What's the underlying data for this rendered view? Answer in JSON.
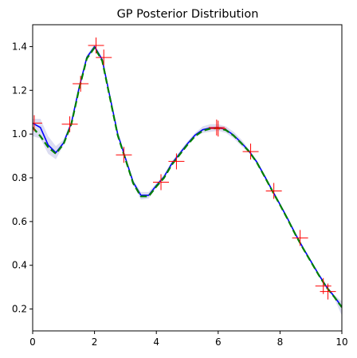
{
  "chart_data": {
    "type": "line",
    "title": "GP Posterior Distribution",
    "xlabel": "",
    "ylabel": "",
    "xlim": [
      0,
      10
    ],
    "ylim": [
      0.1,
      1.5
    ],
    "xticks": [
      0,
      2,
      4,
      6,
      8,
      10
    ],
    "yticks": [
      0.2,
      0.4,
      0.6,
      0.8,
      1.0,
      1.2,
      1.4
    ],
    "xtick_labels": [
      "0",
      "2",
      "4",
      "6",
      "8",
      "10"
    ],
    "ytick_labels": [
      "0.2",
      "0.4",
      "0.6",
      "0.8",
      "1.0",
      "1.2",
      "1.4"
    ],
    "grid": false,
    "legend": "none",
    "series": [
      {
        "kind": "band",
        "color": "#8a8fd0",
        "x": [
          0.0,
          0.25,
          0.5,
          0.75,
          1.0,
          1.25,
          1.5,
          1.75,
          2.0,
          2.25,
          2.5,
          2.75,
          3.0,
          3.25,
          3.5,
          3.75,
          4.0,
          4.25,
          4.5,
          4.75,
          5.0,
          5.25,
          5.5,
          5.75,
          6.0,
          6.25,
          6.5,
          6.75,
          7.0,
          7.25,
          7.5,
          7.75,
          8.0,
          8.25,
          8.5,
          8.75,
          9.0,
          9.25,
          9.5,
          9.75,
          10.0
        ],
        "lower": [
          0.99,
          0.98,
          0.91,
          0.885,
          0.95,
          1.04,
          1.2,
          1.34,
          1.39,
          1.33,
          1.16,
          0.99,
          0.88,
          0.77,
          0.7,
          0.705,
          0.755,
          0.8,
          0.855,
          0.9,
          0.945,
          0.985,
          1.005,
          1.01,
          1.015,
          1.005,
          0.98,
          0.945,
          0.915,
          0.865,
          0.8,
          0.735,
          0.67,
          0.605,
          0.535,
          0.47,
          0.41,
          0.35,
          0.295,
          0.25,
          0.17
        ],
        "upper": [
          1.07,
          1.07,
          0.99,
          0.945,
          0.975,
          1.06,
          1.23,
          1.36,
          1.41,
          1.35,
          1.18,
          1.01,
          0.9,
          0.79,
          0.735,
          0.735,
          0.775,
          0.815,
          0.875,
          0.92,
          0.965,
          1.005,
          1.035,
          1.045,
          1.045,
          1.035,
          1.01,
          0.975,
          0.93,
          0.88,
          0.815,
          0.75,
          0.685,
          0.62,
          0.55,
          0.485,
          0.425,
          0.365,
          0.31,
          0.265,
          0.235
        ]
      },
      {
        "kind": "line",
        "color": "#0000ff",
        "dash": "solid",
        "x": [
          0.0,
          0.25,
          0.5,
          0.75,
          1.0,
          1.25,
          1.5,
          1.75,
          2.0,
          2.25,
          2.5,
          2.75,
          3.0,
          3.25,
          3.5,
          3.75,
          4.0,
          4.25,
          4.5,
          4.75,
          5.0,
          5.25,
          5.5,
          5.75,
          6.0,
          6.25,
          6.5,
          6.75,
          7.0,
          7.25,
          7.5,
          7.75,
          8.0,
          8.25,
          8.5,
          8.75,
          9.0,
          9.25,
          9.5,
          9.75,
          10.0
        ],
        "values": [
          1.05,
          1.03,
          0.95,
          0.915,
          0.96,
          1.05,
          1.21,
          1.35,
          1.4,
          1.34,
          1.17,
          1.0,
          0.89,
          0.78,
          0.72,
          0.72,
          0.765,
          0.805,
          0.865,
          0.91,
          0.955,
          0.995,
          1.02,
          1.028,
          1.03,
          1.02,
          0.995,
          0.96,
          0.922,
          0.872,
          0.808,
          0.742,
          0.678,
          0.612,
          0.542,
          0.478,
          0.418,
          0.358,
          0.302,
          0.258,
          0.21
        ]
      },
      {
        "kind": "line",
        "color": "#008000",
        "dash": "dashed",
        "x": [
          0.0,
          0.25,
          0.5,
          0.75,
          1.0,
          1.25,
          1.5,
          1.75,
          2.0,
          2.25,
          2.5,
          2.75,
          3.0,
          3.25,
          3.5,
          3.75,
          4.0,
          4.25,
          4.5,
          4.75,
          5.0,
          5.25,
          5.5,
          5.75,
          6.0,
          6.25,
          6.5,
          6.75,
          7.0,
          7.25,
          7.5,
          7.75,
          8.0,
          8.25,
          8.5,
          8.75,
          9.0,
          9.25,
          9.5,
          9.75,
          10.0
        ],
        "values": [
          1.03,
          0.99,
          0.94,
          0.91,
          0.955,
          1.045,
          1.205,
          1.345,
          1.395,
          1.335,
          1.165,
          0.995,
          0.885,
          0.775,
          0.715,
          0.715,
          0.76,
          0.8,
          0.86,
          0.905,
          0.95,
          0.99,
          1.015,
          1.025,
          1.027,
          1.018,
          0.993,
          0.958,
          0.92,
          0.87,
          0.806,
          0.74,
          0.676,
          0.61,
          0.54,
          0.476,
          0.416,
          0.356,
          0.3,
          0.256,
          0.208
        ]
      },
      {
        "kind": "scatter",
        "marker": "+",
        "color": "#ff0000",
        "x": [
          0.05,
          1.2,
          1.55,
          2.05,
          2.3,
          2.95,
          4.15,
          4.65,
          5.95,
          6.0,
          7.05,
          7.8,
          8.65,
          9.4,
          9.55
        ],
        "values": [
          1.05,
          1.045,
          1.23,
          1.405,
          1.35,
          0.905,
          0.78,
          0.875,
          1.03,
          1.025,
          0.92,
          0.74,
          0.525,
          0.305,
          0.28
        ]
      }
    ]
  }
}
